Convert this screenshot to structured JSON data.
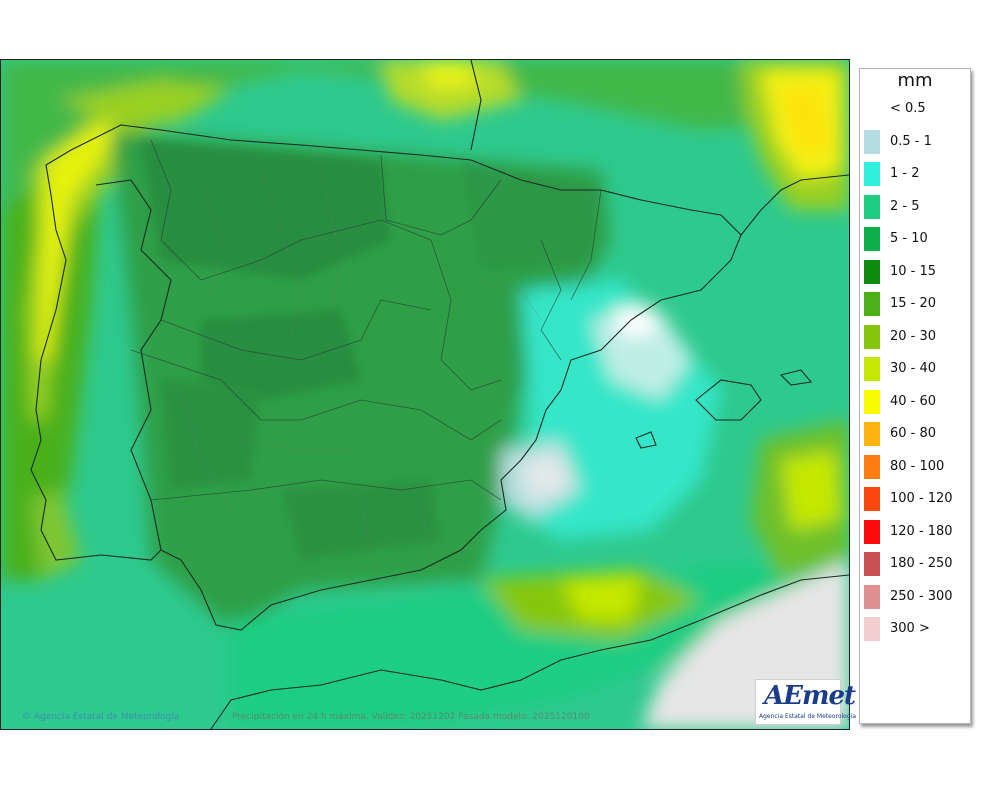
{
  "legend": {
    "unit": "mm",
    "items": [
      {
        "label": "< 0.5",
        "color": "#ffffff"
      },
      {
        "label": "0.5 - 1",
        "color": "#b4dde1"
      },
      {
        "label": "1 - 2",
        "color": "#2ff0dc"
      },
      {
        "label": "2 - 5",
        "color": "#1ccd83"
      },
      {
        "label": "5 - 10",
        "color": "#0cb04a"
      },
      {
        "label": "10 - 15",
        "color": "#0d8c0d"
      },
      {
        "label": "15 - 20",
        "color": "#4ab01b"
      },
      {
        "label": "20 - 30",
        "color": "#86c70e"
      },
      {
        "label": "30 - 40",
        "color": "#c5e805"
      },
      {
        "label": "40 - 60",
        "color": "#fbfb00"
      },
      {
        "label": "60 - 80",
        "color": "#feb40e"
      },
      {
        "label": "80 - 100",
        "color": "#ff7d10"
      },
      {
        "label": "100 - 120",
        "color": "#fb4710"
      },
      {
        "label": "120 - 180",
        "color": "#fa0a0a"
      },
      {
        "label": "180 - 250",
        "color": "#c85050"
      },
      {
        "label": "250 - 300",
        "color": "#de9090"
      },
      {
        "label": "300 >",
        "color": "#f1cfcf"
      }
    ]
  },
  "footer": {
    "credit": "Agencia Estatal de Meteorología",
    "validity": "Precipitación en 24 h máxima. Validez: 20251202 Pasada modelo: 2025120100"
  },
  "logo": {
    "wordmark": "AEmet",
    "subtitle": "Agencia Estatal de Meteorología"
  }
}
